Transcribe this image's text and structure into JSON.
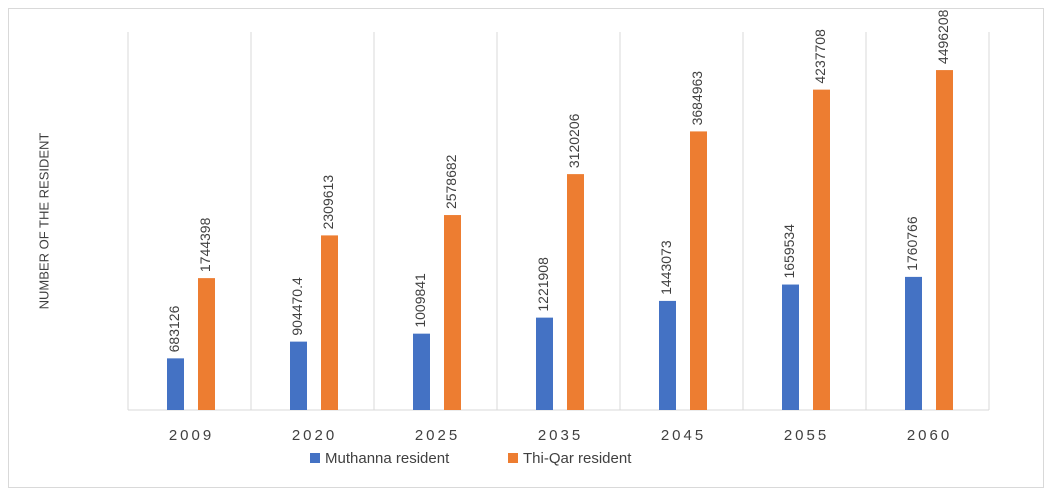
{
  "chart_data": {
    "type": "bar",
    "y_label": "NUMBER OF THE RESIDENT",
    "categories": [
      "2009",
      "2020",
      "2025",
      "2035",
      "2045",
      "2055",
      "2060"
    ],
    "series": [
      {
        "name": "Muthanna resident",
        "color": "#4472c4",
        "values": [
          683126,
          904470.4,
          1009841,
          1221908,
          1443073,
          1659534,
          1760766
        ]
      },
      {
        "name": "Thi-Qar resident",
        "color": "#ed7d31",
        "values": [
          1744398,
          2309613,
          2578682,
          3120206,
          3684963,
          4237708,
          4496208
        ]
      }
    ],
    "ylim": [
      0,
      5000000
    ],
    "legend": "bottom"
  }
}
